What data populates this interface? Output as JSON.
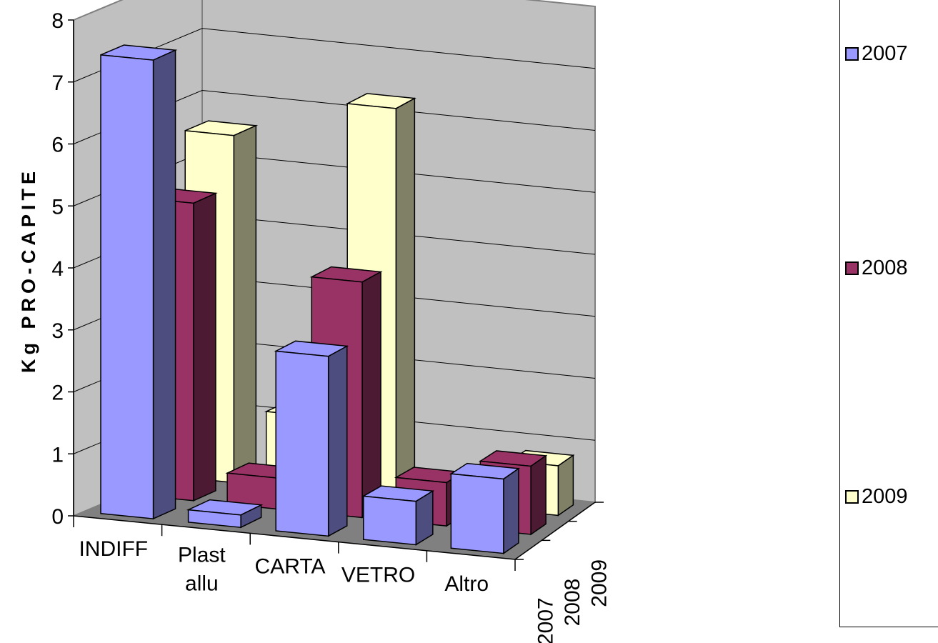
{
  "chart_data": {
    "type": "bar",
    "subtype": "3d-column-grouped-depth",
    "ylabel": "Kg PRO-CAPITE",
    "xlabel": "",
    "ylim": [
      0,
      8
    ],
    "yticks": [
      "0",
      "1",
      "2",
      "3",
      "4",
      "5",
      "6",
      "7",
      "8"
    ],
    "grid": true,
    "legend_position": "right",
    "categories": [
      {
        "lines": [
          "INDIFF"
        ]
      },
      {
        "lines": [
          "Plast",
          "allu"
        ]
      },
      {
        "lines": [
          "CARTA"
        ]
      },
      {
        "lines": [
          "VETRO"
        ]
      },
      {
        "lines": [
          "Altro"
        ]
      }
    ],
    "depth_labels": [
      "2007",
      "2008",
      "2009"
    ],
    "series": [
      {
        "name": "2007",
        "color": "#9999ff",
        "values": [
          7.4,
          0.2,
          2.9,
          0.7,
          1.2
        ]
      },
      {
        "name": "2008",
        "color": "#993366",
        "values": [
          4.8,
          0.5,
          3.8,
          0.7,
          1.1
        ]
      },
      {
        "name": "2009",
        "color": "#ffffcc",
        "values": [
          5.6,
          1.2,
          6.3,
          0.3,
          0.8
        ]
      }
    ]
  }
}
